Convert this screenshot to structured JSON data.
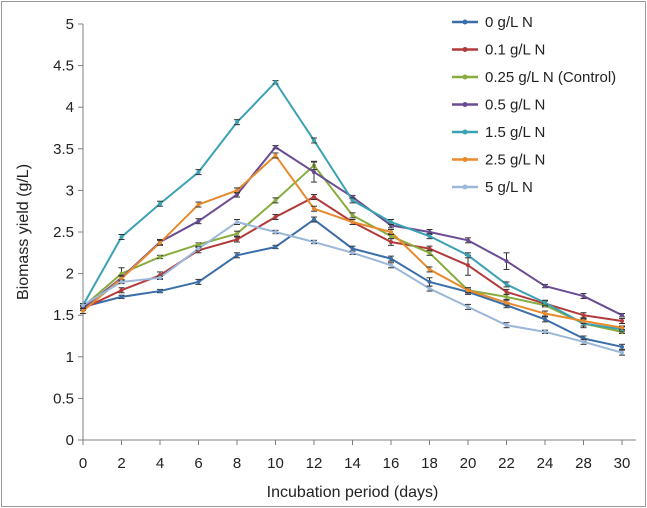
{
  "chart_data": {
    "type": "line",
    "xlabel": "Incubation period (days)",
    "ylabel": "Biomass yield (g/L)",
    "ylim": [
      0,
      5
    ],
    "yticks": [
      "0",
      "0.5",
      "1",
      "1.5",
      "2",
      "2.5",
      "3",
      "3.5",
      "4",
      "4.5",
      "5"
    ],
    "categories": [
      "0",
      "2",
      "4",
      "6",
      "8",
      "10",
      "12",
      "14",
      "16",
      "18",
      "20",
      "22",
      "24",
      "28",
      "30"
    ],
    "grid": false,
    "legend_position": "top-right",
    "error_bars": true,
    "series": [
      {
        "name": "0 g/L N",
        "color": "#3b6ea8",
        "values": [
          1.6,
          1.72,
          1.79,
          1.9,
          2.22,
          2.32,
          2.65,
          2.3,
          2.18,
          1.9,
          1.78,
          1.62,
          1.45,
          1.22,
          1.12
        ],
        "errors": [
          0.02,
          0.02,
          0.02,
          0.03,
          0.03,
          0.02,
          0.03,
          0.03,
          0.03,
          0.05,
          0.03,
          0.03,
          0.03,
          0.03,
          0.03
        ]
      },
      {
        "name": "0.1 g/L N",
        "color": "#b33a3a",
        "values": [
          1.58,
          1.8,
          1.98,
          2.28,
          2.41,
          2.68,
          2.92,
          2.62,
          2.38,
          2.3,
          2.1,
          1.78,
          1.64,
          1.5,
          1.43
        ],
        "errors": [
          0.02,
          0.03,
          0.04,
          0.03,
          0.03,
          0.03,
          0.03,
          0.03,
          0.04,
          0.03,
          0.12,
          0.03,
          0.03,
          0.03,
          0.03
        ]
      },
      {
        "name": "0.25 g/L N (Control)",
        "color": "#8aac3e",
        "values": [
          1.6,
          2.0,
          2.2,
          2.35,
          2.48,
          2.88,
          3.3,
          2.7,
          2.45,
          2.25,
          1.8,
          1.72,
          1.62,
          1.4,
          1.3
        ],
        "errors": [
          0.02,
          0.07,
          0.02,
          0.02,
          0.03,
          0.03,
          0.05,
          0.03,
          0.03,
          0.03,
          0.03,
          0.03,
          0.02,
          0.03,
          0.02
        ]
      },
      {
        "name": "0.5 g/L N",
        "color": "#6a4c93",
        "values": [
          1.58,
          1.95,
          2.38,
          2.63,
          2.95,
          3.52,
          3.22,
          2.92,
          2.58,
          2.5,
          2.4,
          2.15,
          1.85,
          1.73,
          1.5
        ],
        "errors": [
          0.02,
          0.03,
          0.03,
          0.03,
          0.03,
          0.02,
          0.12,
          0.02,
          0.03,
          0.03,
          0.03,
          0.1,
          0.02,
          0.03,
          0.02
        ]
      },
      {
        "name": "1.5 g/L N",
        "color": "#3aa2b3",
        "values": [
          1.62,
          2.44,
          2.84,
          3.22,
          3.82,
          4.3,
          3.6,
          2.88,
          2.62,
          2.45,
          2.22,
          1.87,
          1.65,
          1.4,
          1.33
        ],
        "errors": [
          0.02,
          0.03,
          0.03,
          0.03,
          0.03,
          0.02,
          0.03,
          0.03,
          0.03,
          0.03,
          0.03,
          0.03,
          0.03,
          0.05,
          0.03
        ]
      },
      {
        "name": "2.5 g/L N",
        "color": "#e88a2e",
        "values": [
          1.55,
          1.94,
          2.37,
          2.83,
          3.0,
          3.42,
          2.78,
          2.62,
          2.5,
          2.05,
          1.8,
          1.65,
          1.52,
          1.43,
          1.35
        ],
        "errors": [
          0.03,
          0.03,
          0.03,
          0.03,
          0.03,
          0.03,
          0.03,
          0.03,
          0.03,
          0.03,
          0.03,
          0.03,
          0.03,
          0.03,
          0.02
        ]
      },
      {
        "name": "5 g/L N",
        "color": "#9bb7d9",
        "values": [
          1.62,
          1.9,
          1.95,
          2.3,
          2.62,
          2.5,
          2.38,
          2.25,
          2.1,
          1.82,
          1.6,
          1.38,
          1.3,
          1.18,
          1.05
        ],
        "errors": [
          0.02,
          0.02,
          0.02,
          0.02,
          0.03,
          0.02,
          0.02,
          0.02,
          0.03,
          0.03,
          0.03,
          0.03,
          0.02,
          0.03,
          0.03
        ]
      }
    ]
  }
}
